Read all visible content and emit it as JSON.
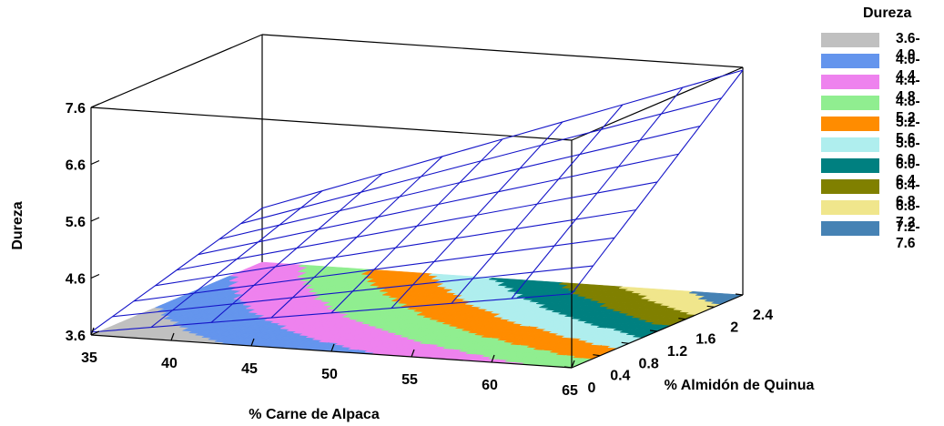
{
  "chart_data": {
    "type": "surface3d",
    "title": "",
    "zlabel": "Dureza",
    "xlabel": "% Carne de Alpaca",
    "ylabel": "% Almidón de Quinua",
    "x_ticks": [
      "35",
      "40",
      "45",
      "50",
      "55",
      "60",
      "65"
    ],
    "y_ticks": [
      "0",
      "0.4",
      "0.8",
      "1.2",
      "1.6",
      "2",
      "2.4"
    ],
    "z_ticks": [
      "3.6",
      "4.6",
      "5.6",
      "6.6",
      "7.6"
    ],
    "xlim": [
      35,
      65
    ],
    "ylim": [
      0,
      2.4
    ],
    "zlim": [
      3.6,
      7.6
    ],
    "mesh": {
      "x": [
        35,
        38.75,
        42.5,
        46.25,
        50,
        53.75,
        57.5,
        61.25,
        65
      ],
      "y": [
        0,
        0.3,
        0.6,
        0.9,
        1.2,
        1.5,
        1.8,
        2.1,
        2.4
      ],
      "z_corners": {
        "x35_y0": 3.65,
        "x65_y0": 4.9,
        "x35_y2.4": 4.55,
        "x65_y2.4": 7.55
      }
    },
    "legend": {
      "title": "Dureza",
      "position": "right",
      "items": [
        {
          "label": "3.6-4.0",
          "color": "#c0c0c0"
        },
        {
          "label": "4.0-4.4",
          "color": "#6495ed"
        },
        {
          "label": "4.4-4.8",
          "color": "#ee82ee"
        },
        {
          "label": "4.8-5.2",
          "color": "#90ee90"
        },
        {
          "label": "5.2-5.6",
          "color": "#ff8c00"
        },
        {
          "label": "5.6-6.0",
          "color": "#afeeee"
        },
        {
          "label": "6.0-6.4",
          "color": "#008080"
        },
        {
          "label": "6.4-6.8",
          "color": "#808000"
        },
        {
          "label": "6.8-7.2",
          "color": "#f0e68c"
        },
        {
          "label": "7.2-7.6",
          "color": "#4682b4"
        }
      ]
    },
    "mesh_color": "#1515c8",
    "grid": false
  }
}
